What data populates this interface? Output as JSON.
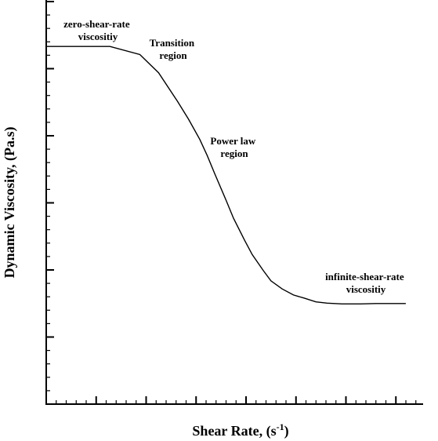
{
  "chart_data": {
    "type": "line",
    "xlabel": "Shear Rate, (s",
    "xlabel_sup": "-1",
    "xlabel_close": ")",
    "ylabel": "Dynamic Viscosity, (Pa.s)",
    "grid": false,
    "x_tick_labels": false,
    "y_tick_labels": false,
    "xlim": [
      0,
      100
    ],
    "ylim": [
      0,
      100
    ],
    "series": [
      {
        "x": [
          0,
          17,
          25,
          30,
          35,
          38,
          41,
          43,
          45,
          48,
          50,
          53,
          55,
          58,
          60,
          63,
          66,
          69,
          72,
          75,
          79,
          84,
          88,
          92,
          96
        ],
        "y": [
          88.5,
          88.5,
          86.5,
          82,
          75,
          70.5,
          65.5,
          61.5,
          57,
          50.5,
          46,
          40.5,
          37,
          33,
          30.5,
          28.5,
          27,
          26.2,
          25.3,
          25,
          24.8,
          24.8,
          24.9,
          24.9,
          24.9
        ]
      }
    ],
    "annotations": [
      {
        "lines": [
          "zero-shear-rate",
          "viscositiy"
        ]
      },
      {
        "lines": [
          "Transition",
          "region"
        ]
      },
      {
        "lines": [
          "Power law",
          "region"
        ]
      },
      {
        "lines": [
          "infinite-shear-rate",
          "viscositiy"
        ]
      }
    ]
  }
}
